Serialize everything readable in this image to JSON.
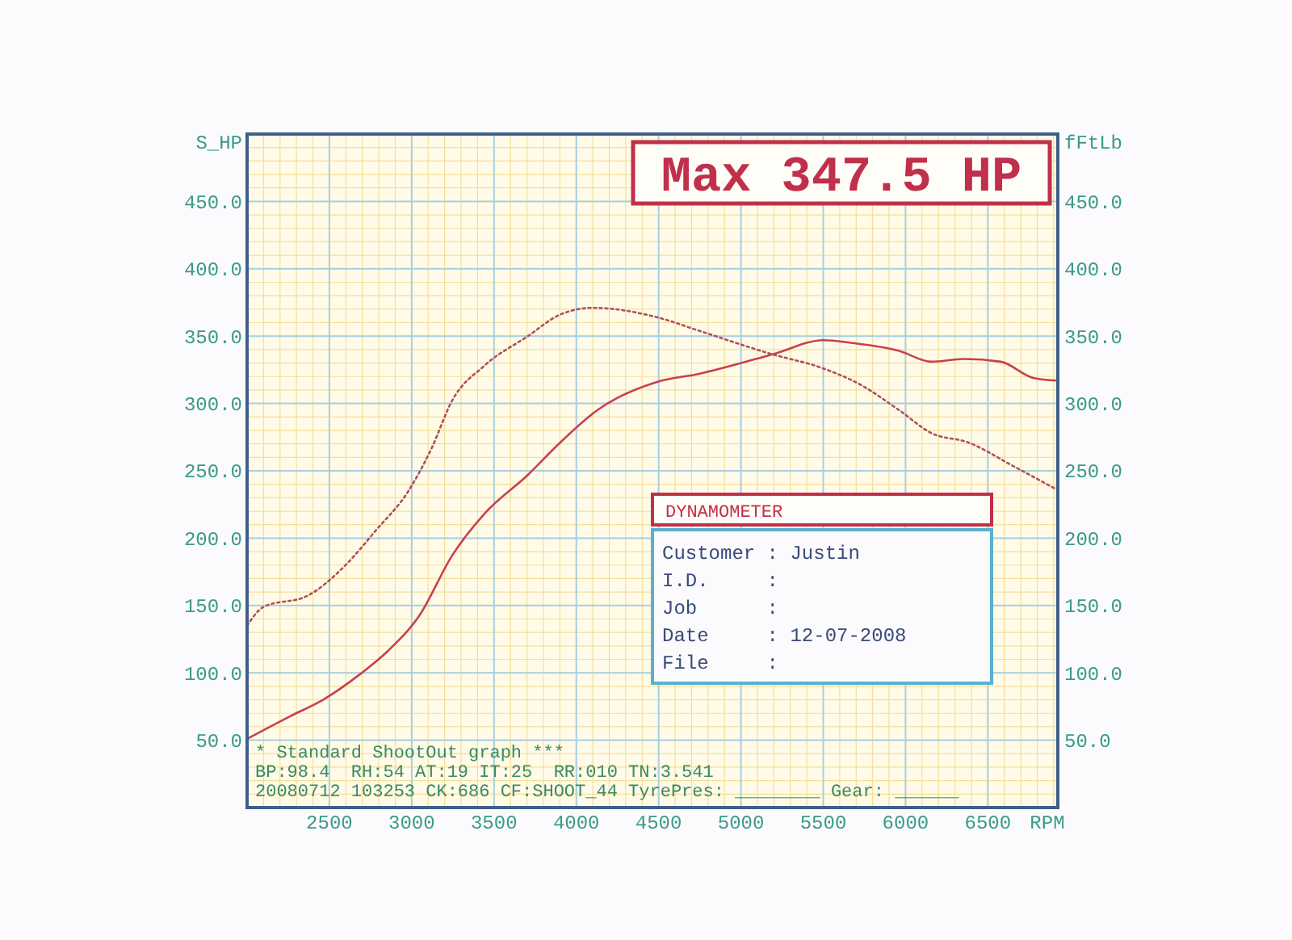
{
  "chart_data": {
    "type": "line",
    "title": "Max 347.5 HP",
    "xlabel": "RPM",
    "ylabel": "S_HP",
    "y2label": "fFtLb",
    "xlim": [
      2000,
      6925
    ],
    "xticks": [
      2500,
      3000,
      3500,
      4000,
      4500,
      5000,
      5500,
      6000,
      6500
    ],
    "ylim": [
      0,
      500
    ],
    "yticks": [
      {
        "value": 50,
        "label": "50.0"
      },
      {
        "value": 100,
        "label": "100.0"
      },
      {
        "value": 150,
        "label": "150.0"
      },
      {
        "value": 200,
        "label": "200.0"
      },
      {
        "value": 250,
        "label": "250.0"
      },
      {
        "value": 300,
        "label": "300.0"
      },
      {
        "value": 350,
        "label": "350.0"
      },
      {
        "value": 400,
        "label": "400.0"
      },
      {
        "value": 450,
        "label": "450.0"
      }
    ],
    "y2lim": [
      0,
      500
    ],
    "y2ticks": [
      {
        "value": 50,
        "label": "50.0"
      },
      {
        "value": 100,
        "label": "100.0"
      },
      {
        "value": 150,
        "label": "150.0"
      },
      {
        "value": 200,
        "label": "200.0"
      },
      {
        "value": 250,
        "label": "250.0"
      },
      {
        "value": 300,
        "label": "300.0"
      },
      {
        "value": 350,
        "label": "350.0"
      },
      {
        "value": 400,
        "label": "400.0"
      },
      {
        "value": 450,
        "label": "450.0"
      }
    ],
    "grid": true,
    "marker": "none",
    "series": [
      {
        "color": "#c8404e",
        "line_style": "solid",
        "x": [
          2000,
          2265,
          2461,
          2686,
          2853,
          3049,
          3245,
          3441,
          3706,
          3902,
          4127,
          4490,
          4745,
          5206,
          5500,
          5667,
          5961,
          6157,
          6353,
          6578,
          6775,
          6920
        ],
        "values": [
          51,
          68,
          80,
          99,
          116,
          143,
          187,
          218,
          247,
          271,
          295,
          316,
          322,
          337,
          347,
          345,
          339,
          331,
          333,
          331,
          319,
          317
        ]
      },
      {
        "color": "#b0505a",
        "line_style": "dotted",
        "x": [
          2000,
          2100,
          2363,
          2590,
          2784,
          2980,
          3118,
          3245,
          3441,
          3706,
          3902,
          4098,
          4490,
          4745,
          5176,
          5500,
          5725,
          5961,
          6157,
          6382,
          6647,
          6920
        ],
        "values": [
          135,
          149,
          157,
          179,
          206,
          235,
          266,
          302,
          328,
          350,
          366,
          371,
          364,
          354,
          337,
          326,
          314,
          295,
          278,
          271,
          254,
          236
        ]
      }
    ],
    "annotations": [
      "* Standard ShootOut graph ***",
      "BP:98.4  RH:54 AT:19 IT:25  RR:010 TN:3.541",
      "20080712 103253 CK:686 CF:SHOOT_44 TyrePres: ________ Gear: ______",
      "DYNAMOMETER",
      "Customer : Justin",
      "I.D.     :",
      "Job      :",
      "Date     : 12-07-2008",
      "File     :"
    ]
  }
}
